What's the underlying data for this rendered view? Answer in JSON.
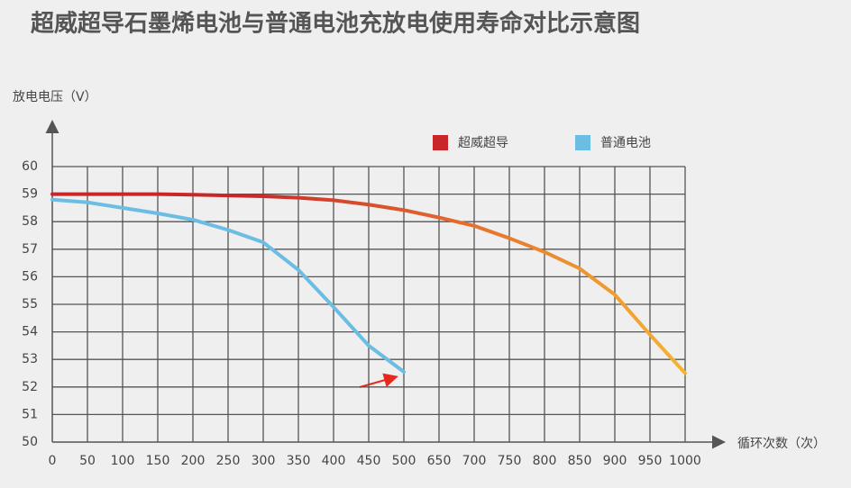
{
  "chart_data": {
    "type": "line",
    "title": "超威超导石墨烯电池与普通电池充放电使用寿命对比示意图",
    "y_label": "放电电压（V）",
    "x_label": "循环次数（次）",
    "categories": [
      "0",
      "50",
      "100",
      "150",
      "200",
      "250",
      "300",
      "350",
      "400",
      "450",
      "500",
      "650",
      "700",
      "750",
      "800",
      "850",
      "900",
      "950",
      "1000"
    ],
    "series": [
      {
        "name": "超威超导",
        "color": "#c9262a",
        "values": [
          59,
          59,
          59,
          59,
          58.98,
          58.95,
          58.92,
          58.87,
          58.78,
          58.62,
          58.42,
          58.15,
          57.85,
          57.4,
          56.9,
          56.3,
          55.35,
          53.9,
          52.5
        ]
      },
      {
        "name": "普通电池",
        "color": "#6bbde3",
        "values": [
          58.8,
          58.7,
          58.5,
          58.3,
          58.07,
          57.7,
          57.25,
          56.25,
          54.9,
          53.5,
          52.55,
          null,
          null,
          null,
          null,
          null,
          null,
          null,
          null
        ]
      }
    ],
    "ylim": [
      50,
      60
    ],
    "yticks": [
      50,
      51,
      52,
      53,
      54,
      55,
      56,
      57,
      58,
      59,
      60
    ],
    "grid": true
  }
}
